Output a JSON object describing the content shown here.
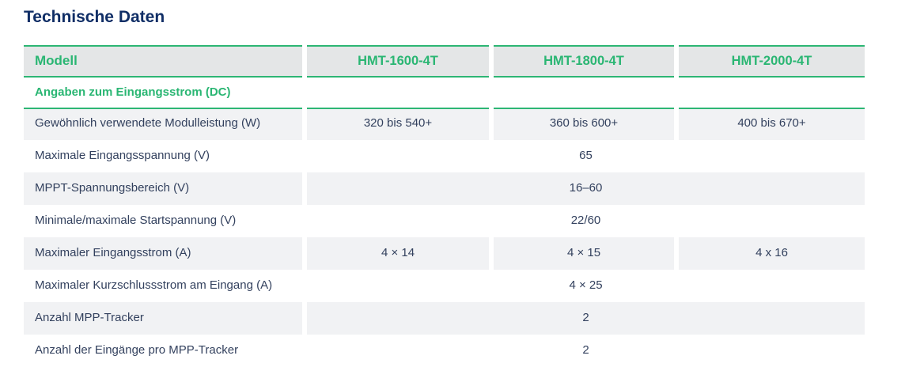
{
  "page": {
    "title": "Technische Daten"
  },
  "table": {
    "header": {
      "label": "Modell",
      "models": [
        "HMT-1600-4T",
        "HMT-1800-4T",
        "HMT-2000-4T"
      ]
    },
    "section": "Angaben zum Eingangsstrom (DC)",
    "rows": [
      {
        "label": "Gewöhnlich verwendete Modulleistung (W)",
        "values": [
          "320 bis 540+",
          "360 bis 600+",
          "400 bis 670+"
        ]
      },
      {
        "label": "Maximale Eingangsspannung (V)",
        "span": "65"
      },
      {
        "label": "MPPT-Spannungsbereich (V)",
        "span": "16–60"
      },
      {
        "label": "Minimale/maximale Startspannung (V)",
        "span": "22/60"
      },
      {
        "label": "Maximaler Eingangsstrom (A)",
        "values": [
          "4 × 14",
          "4 × 15",
          "4 x 16"
        ]
      },
      {
        "label": "Maximaler Kurzschlussstrom am Eingang (A)",
        "span": "4 × 25"
      },
      {
        "label": "Anzahl MPP-Tracker",
        "span": "2"
      },
      {
        "label": "Anzahl der Eingänge pro MPP-Tracker",
        "span": "2"
      }
    ],
    "colors": {
      "accent_green": "#2ab673",
      "title_navy": "#102e66",
      "header_bg": "#e4e6e7",
      "row_alt_bg": "#f1f2f4",
      "body_text": "#33415e"
    }
  }
}
